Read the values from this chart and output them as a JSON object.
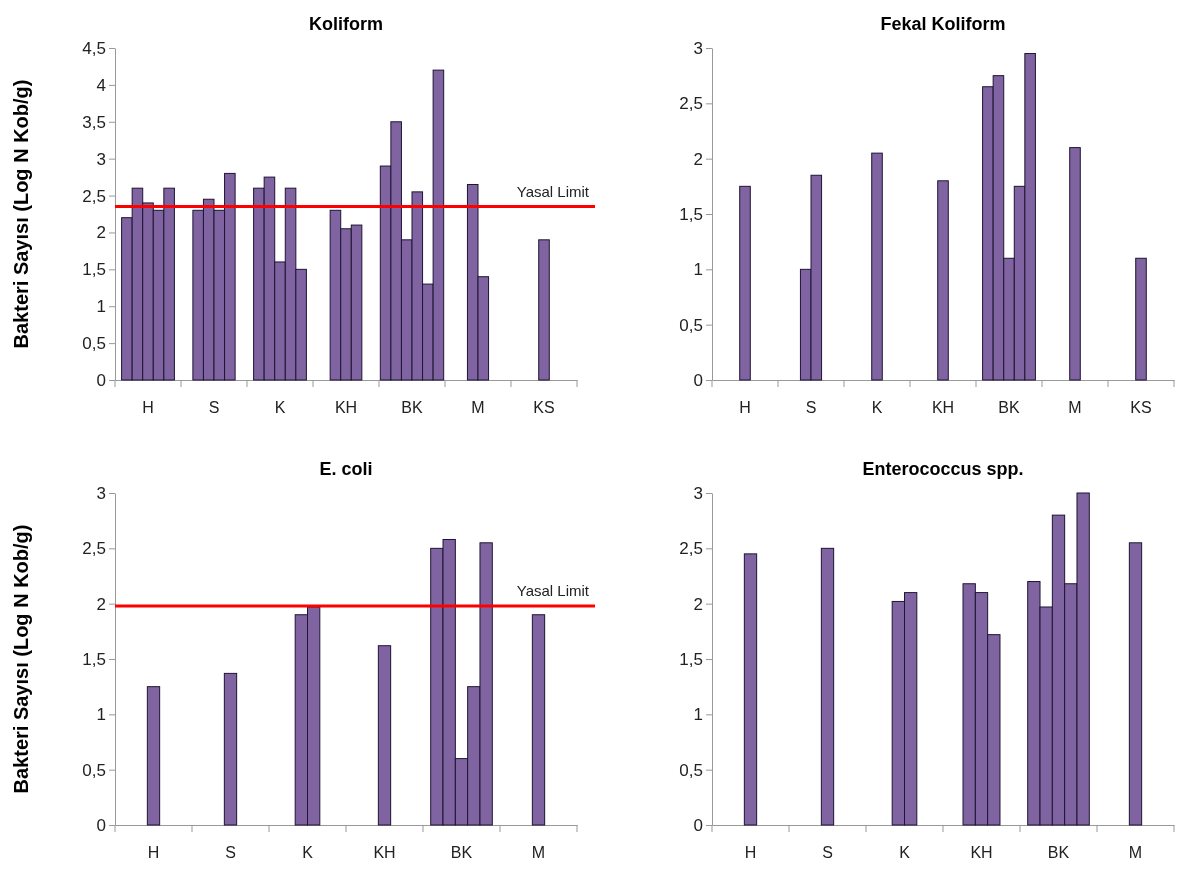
{
  "chart_data": [
    {
      "type": "bar",
      "title": "Koliform",
      "ylabel": "Bakteri Sayısı (Log N Kob/g)",
      "categories": [
        "H",
        "S",
        "K",
        "KH",
        "BK",
        "M",
        "KS"
      ],
      "series": [
        {
          "color": "#8064a2",
          "values": [
            2.2,
            2.3,
            2.6,
            2.3,
            2.9,
            2.65,
            1.9
          ]
        },
        {
          "color": "#8064a2",
          "values": [
            2.6,
            2.45,
            2.75,
            2.05,
            3.5,
            1.4,
            null
          ]
        },
        {
          "color": "#8064a2",
          "values": [
            2.4,
            2.3,
            1.6,
            2.1,
            1.9,
            null,
            null
          ]
        },
        {
          "color": "#8064a2",
          "values": [
            2.3,
            2.8,
            2.6,
            null,
            2.55,
            null,
            null
          ]
        },
        {
          "color": "#8064a2",
          "values": [
            2.6,
            null,
            1.5,
            null,
            1.3,
            null,
            null
          ]
        },
        {
          "color": "#8064a2",
          "values": [
            null,
            null,
            null,
            null,
            4.2,
            null,
            null
          ]
        }
      ],
      "ylim": [
        0,
        4.5
      ],
      "yticks": [
        0,
        {
          "value": 0.5,
          "label": "0,5"
        },
        1,
        {
          "value": 1.5,
          "label": "1,5"
        },
        2,
        {
          "value": 2.5,
          "label": "2,5"
        },
        3,
        {
          "value": 3.5,
          "label": "3,5"
        },
        4,
        {
          "value": 4.5,
          "label": "4,5"
        }
      ],
      "ref_lines": [
        {
          "axis": "y",
          "value": 2.35,
          "label": "Yasal Limit",
          "color": "#ff0000"
        }
      ]
    },
    {
      "type": "bar",
      "title": "Fekal Koliform",
      "categories": [
        "H",
        "S",
        "K",
        "KH",
        "BK",
        "M",
        "KS"
      ],
      "series": [
        {
          "color": "#8064a2",
          "values": [
            1.75,
            1.0,
            2.05,
            1.8,
            2.65,
            2.1,
            1.1
          ]
        },
        {
          "color": "#8064a2",
          "values": [
            null,
            1.85,
            null,
            null,
            2.75,
            null,
            null
          ]
        },
        {
          "color": "#8064a2",
          "values": [
            null,
            null,
            null,
            null,
            1.1,
            null,
            null
          ]
        },
        {
          "color": "#8064a2",
          "values": [
            null,
            null,
            null,
            null,
            1.75,
            null,
            null
          ]
        },
        {
          "color": "#8064a2",
          "values": [
            null,
            null,
            null,
            null,
            2.95,
            null,
            null
          ]
        }
      ],
      "ylim": [
        0,
        3
      ],
      "yticks": [
        0,
        {
          "value": 0.5,
          "label": "0,5"
        },
        1,
        {
          "value": 1.5,
          "label": "1,5"
        },
        2,
        {
          "value": 2.5,
          "label": "2,5"
        },
        3
      ]
    },
    {
      "type": "bar",
      "title": "E. coli",
      "ylabel": "Bakteri Sayısı (Log N Kob/g)",
      "categories": [
        "H",
        "S",
        "K",
        "KH",
        "BK",
        "M"
      ],
      "series": [
        {
          "color": "#8064a2",
          "values": [
            1.25,
            1.37,
            1.9,
            1.62,
            2.5,
            1.9
          ]
        },
        {
          "color": "#8064a2",
          "values": [
            null,
            null,
            1.97,
            null,
            2.58,
            null
          ]
        },
        {
          "color": "#8064a2",
          "values": [
            null,
            null,
            null,
            null,
            0.6,
            null
          ]
        },
        {
          "color": "#8064a2",
          "values": [
            null,
            null,
            null,
            null,
            1.25,
            null
          ]
        },
        {
          "color": "#8064a2",
          "values": [
            null,
            null,
            null,
            null,
            2.55,
            null
          ]
        }
      ],
      "ylim": [
        0,
        3
      ],
      "yticks": [
        0,
        {
          "value": 0.5,
          "label": "0,5"
        },
        1,
        {
          "value": 1.5,
          "label": "1,5"
        },
        2,
        {
          "value": 2.5,
          "label": "2,5"
        },
        3
      ],
      "ref_lines": [
        {
          "axis": "y",
          "value": 1.98,
          "label": "Yasal Limit",
          "color": "#ff0000"
        }
      ]
    },
    {
      "type": "bar",
      "title": "Enterococcus spp.",
      "categories": [
        "H",
        "S",
        "K",
        "KH",
        "BK",
        "M"
      ],
      "series": [
        {
          "color": "#8064a2",
          "values": [
            2.45,
            2.5,
            2.02,
            2.18,
            2.2,
            2.55
          ]
        },
        {
          "color": "#8064a2",
          "values": [
            null,
            null,
            2.1,
            2.1,
            1.97,
            null
          ]
        },
        {
          "color": "#8064a2",
          "values": [
            null,
            null,
            null,
            1.72,
            2.8,
            null
          ]
        },
        {
          "color": "#8064a2",
          "values": [
            null,
            null,
            null,
            null,
            2.18,
            null
          ]
        },
        {
          "color": "#8064a2",
          "values": [
            null,
            null,
            null,
            null,
            3.0,
            null
          ]
        }
      ],
      "ylim": [
        0,
        3
      ],
      "yticks": [
        0,
        {
          "value": 0.5,
          "label": "0,5"
        },
        1,
        {
          "value": 1.5,
          "label": "1,5"
        },
        2,
        {
          "value": 2.5,
          "label": "2,5"
        },
        3
      ]
    }
  ]
}
